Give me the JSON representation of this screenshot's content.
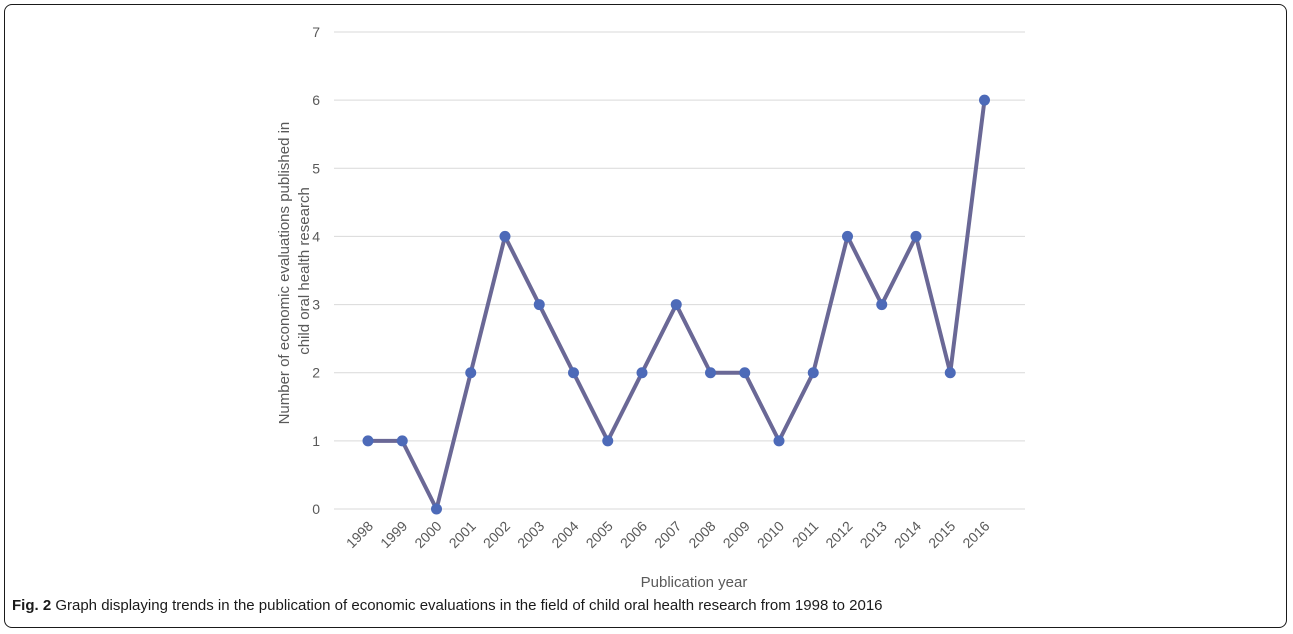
{
  "chart_data": {
    "type": "line",
    "x": [
      "1998",
      "1999",
      "2000",
      "2001",
      "2002",
      "2003",
      "2004",
      "2005",
      "2006",
      "2007",
      "2008",
      "2009",
      "2010",
      "2011",
      "2012",
      "2013",
      "2014",
      "2015",
      "2016"
    ],
    "series": [
      {
        "values": [
          1,
          1,
          0,
          2,
          4,
          3,
          2,
          1,
          2,
          3,
          2,
          2,
          1,
          2,
          4,
          3,
          4,
          2,
          6
        ]
      }
    ],
    "yticks": [
      "0",
      "1",
      "2",
      "3",
      "4",
      "5",
      "6",
      "7"
    ],
    "ylim": [
      0,
      7
    ],
    "xlabel": "Publication year",
    "ylabel_lines": [
      "Number of economic evaluations published in",
      "child oral health research"
    ],
    "grid": true,
    "colors": {
      "line": "#6a6896",
      "marker": "#4d6ab8",
      "grid": "#d9d9d9"
    }
  },
  "caption": {
    "label": "Fig. 2",
    "text": " Graph displaying trends in the publication of economic evaluations in the field of child oral health research from 1998 to 2016"
  }
}
